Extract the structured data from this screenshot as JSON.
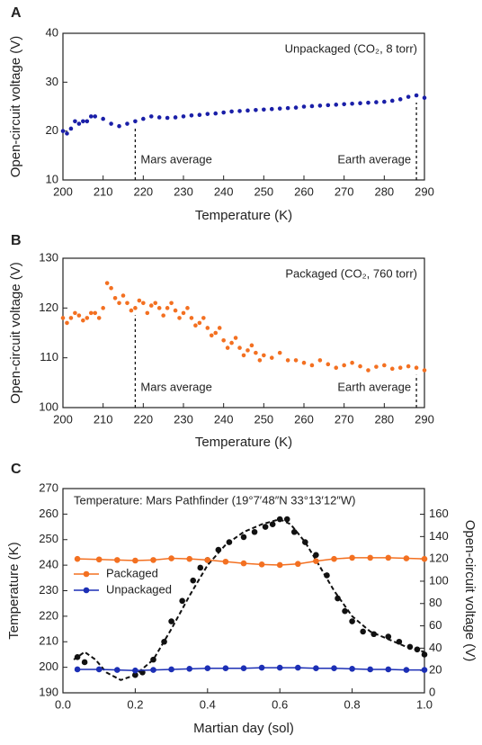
{
  "chart_data": [
    {
      "type": "scatter",
      "panel": "A",
      "xlabel": "Temperature (K)",
      "ylabel": "Open-circuit voltage (V)",
      "xlim": [
        200,
        290
      ],
      "xticks": [
        200,
        210,
        220,
        230,
        240,
        250,
        260,
        270,
        280,
        290
      ],
      "ylim": [
        10,
        40
      ],
      "yticks": [
        10,
        20,
        30,
        40
      ],
      "inset_label": "Unpackaged (CO₂, 8 torr)",
      "annotations": [
        {
          "text": "Mars average",
          "x": 218
        },
        {
          "text": "Earth average",
          "x": 288
        }
      ],
      "series": [
        {
          "color": "#1a1fa8",
          "x": [
            200,
            201,
            202,
            203,
            204,
            205,
            206,
            207,
            208,
            210,
            212,
            214,
            216,
            218,
            220,
            222,
            224,
            226,
            228,
            230,
            232,
            234,
            236,
            238,
            240,
            242,
            244,
            246,
            248,
            250,
            252,
            254,
            256,
            258,
            260,
            262,
            264,
            266,
            268,
            270,
            272,
            274,
            276,
            278,
            280,
            282,
            284,
            286,
            288,
            290
          ],
          "values": [
            20,
            19.5,
            20.5,
            22,
            21.5,
            22,
            22,
            23,
            23,
            22.5,
            21.5,
            21,
            21.5,
            22,
            22.5,
            23,
            22.8,
            22.7,
            22.8,
            23,
            23.2,
            23.3,
            23.5,
            23.6,
            23.8,
            24,
            24.1,
            24.2,
            24.3,
            24.4,
            24.5,
            24.6,
            24.7,
            24.8,
            25,
            25.1,
            25.2,
            25.3,
            25.4,
            25.5,
            25.6,
            25.7,
            25.8,
            25.9,
            26,
            26.2,
            26.5,
            27,
            27.3,
            26.8
          ]
        }
      ]
    },
    {
      "type": "scatter",
      "panel": "B",
      "xlabel": "Temperature (K)",
      "ylabel": "Open-circuit voltage (V)",
      "xlim": [
        200,
        290
      ],
      "xticks": [
        200,
        210,
        220,
        230,
        240,
        250,
        260,
        270,
        280,
        290
      ],
      "ylim": [
        100,
        130
      ],
      "yticks": [
        100,
        110,
        120,
        130
      ],
      "inset_label": "Packaged (CO₂, 760 torr)",
      "annotations": [
        {
          "text": "Mars average",
          "x": 218
        },
        {
          "text": "Earth average",
          "x": 288
        }
      ],
      "series": [
        {
          "color": "#f37021",
          "x": [
            200,
            201,
            202,
            203,
            204,
            205,
            206,
            207,
            208,
            209,
            210,
            211,
            212,
            213,
            214,
            215,
            216,
            217,
            218,
            219,
            220,
            221,
            222,
            223,
            224,
            225,
            226,
            227,
            228,
            229,
            230,
            231,
            232,
            233,
            234,
            235,
            236,
            237,
            238,
            239,
            240,
            241,
            242,
            243,
            244,
            245,
            246,
            247,
            248,
            249,
            250,
            252,
            254,
            256,
            258,
            260,
            262,
            264,
            266,
            268,
            270,
            272,
            274,
            276,
            278,
            280,
            282,
            284,
            286,
            288,
            290
          ],
          "values": [
            118,
            117,
            118,
            119,
            118.5,
            117.5,
            118,
            119,
            119,
            118,
            120,
            125,
            124,
            122,
            121,
            122.5,
            121,
            119.5,
            120,
            121.5,
            121,
            119,
            120.5,
            121,
            120,
            118.5,
            120,
            121,
            119.5,
            118,
            119,
            120,
            118,
            116.5,
            117,
            118,
            116,
            114.5,
            115,
            116,
            113.5,
            112,
            113,
            114,
            112,
            110.5,
            111.5,
            112.5,
            111,
            109.5,
            110.5,
            110,
            111,
            109.5,
            109.5,
            109,
            108.5,
            109.5,
            108.7,
            108,
            108.5,
            109,
            108.3,
            107.5,
            108.2,
            108.5,
            107.8,
            108,
            108.3,
            108,
            107.5
          ]
        }
      ]
    },
    {
      "type": "line",
      "panel": "C",
      "xlabel": "Martian day (sol)",
      "ylabel": "Temperature (K)",
      "y2label": "Open-circuit voltage (V)",
      "xlim": [
        0,
        1
      ],
      "xticks": [
        {
          "value": 0,
          "label": "0.0"
        },
        0.2,
        0.4,
        0.6,
        0.8,
        {
          "value": 1,
          "label": "1.0"
        }
      ],
      "ylim": [
        190,
        270
      ],
      "yticks": [
        190,
        200,
        210,
        220,
        230,
        240,
        250,
        260,
        270
      ],
      "y2lim": [
        0,
        183
      ],
      "y2ticks": [
        0,
        20,
        40,
        60,
        80,
        100,
        120,
        140,
        160
      ],
      "inset_label": "Temperature: Mars Pathfinder (19°7′48″N 33°13′12″W)",
      "series": [
        {
          "color": "#111111",
          "mode": "markers",
          "x": [
            0.04,
            0.06,
            0.2,
            0.22,
            0.25,
            0.28,
            0.3,
            0.33,
            0.36,
            0.38,
            0.4,
            0.43,
            0.46,
            0.5,
            0.53,
            0.56,
            0.58,
            0.6,
            0.62,
            0.64,
            0.67,
            0.7,
            0.73,
            0.76,
            0.78,
            0.8,
            0.83,
            0.86,
            0.9,
            0.93,
            0.96,
            0.98,
            1.0
          ],
          "values": [
            204,
            202,
            197,
            198,
            203,
            210,
            218,
            226,
            234,
            239,
            242,
            246,
            249,
            251,
            253,
            255,
            256,
            258,
            258,
            253,
            249,
            244,
            236,
            227,
            222,
            218,
            214,
            213,
            212,
            210,
            208,
            207,
            205
          ]
        },
        {
          "color": "#111111",
          "mode": "lines",
          "line_style": "dashed",
          "x": [
            0.03,
            0.06,
            0.09,
            0.12,
            0.16,
            0.2,
            0.25,
            0.3,
            0.35,
            0.4,
            0.45,
            0.5,
            0.55,
            0.6,
            0.63,
            0.67,
            0.7,
            0.75,
            0.8,
            0.85,
            0.9,
            0.95,
            1.0
          ],
          "values": [
            203,
            206,
            203,
            198,
            195,
            197,
            203,
            215,
            228,
            240,
            248,
            253,
            256,
            258,
            256,
            249,
            242,
            230,
            220,
            214,
            211,
            208,
            206
          ]
        },
        {
          "name": "Packaged",
          "color": "#f37021",
          "mode": "lines+markers",
          "axis": "y2",
          "x": [
            0.04,
            0.1,
            0.15,
            0.2,
            0.25,
            0.3,
            0.35,
            0.4,
            0.45,
            0.5,
            0.55,
            0.6,
            0.65,
            0.7,
            0.75,
            0.8,
            0.85,
            0.9,
            0.95,
            1.0
          ],
          "values": [
            120,
            119.5,
            119,
            118.5,
            119,
            120.5,
            120,
            119,
            117.5,
            116,
            115,
            114.5,
            115.5,
            118,
            120,
            121,
            121,
            121,
            120.5,
            120
          ]
        },
        {
          "name": "Unpackaged",
          "color": "#1c2fb5",
          "mode": "lines+markers",
          "axis": "y2",
          "x": [
            0.04,
            0.1,
            0.15,
            0.2,
            0.25,
            0.3,
            0.35,
            0.4,
            0.45,
            0.5,
            0.55,
            0.6,
            0.65,
            0.7,
            0.75,
            0.8,
            0.85,
            0.9,
            0.95,
            1.0
          ],
          "values": [
            21,
            21,
            20.5,
            20,
            20.5,
            21,
            21.5,
            22,
            22,
            22,
            22.5,
            22.5,
            22.5,
            22,
            22,
            21.5,
            21,
            21,
            20.5,
            20.5
          ]
        }
      ]
    }
  ]
}
